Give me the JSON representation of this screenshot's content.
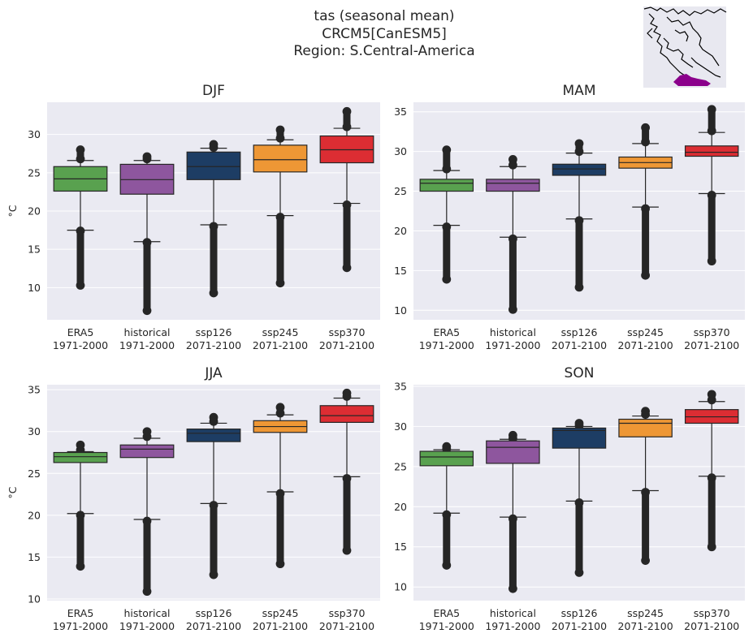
{
  "figure": {
    "title_line1": "tas (seasonal mean)",
    "title_line2": "CRCM5[CanESM5]",
    "title_line3": "Region: S.Central-America"
  },
  "colors": {
    "background": "#eaeaf2",
    "grid": "#ffffff",
    "ERA5": "#59a14f",
    "historical": "#8e569e",
    "ssp126": "#1d3d64",
    "ssp245": "#ee9735",
    "ssp370": "#dc2d33",
    "region_highlight": "#8b008b",
    "map_background": "#e8e8f0"
  },
  "map_inset": {
    "type": "region-map",
    "region": "S.Central-America"
  },
  "chart_data": [
    {
      "type": "box",
      "title": "DJF",
      "ylabel": "°C",
      "ylim": [
        5.8,
        34.2
      ],
      "yticks": [
        10,
        15,
        20,
        25,
        30
      ],
      "grid": true,
      "categories": [
        {
          "line1": "ERA5",
          "line2": "1971-2000"
        },
        {
          "line1": "historical",
          "line2": "1971-2000"
        },
        {
          "line1": "ssp126",
          "line2": "2071-2100"
        },
        {
          "line1": "ssp245",
          "line2": "2071-2100"
        },
        {
          "line1": "ssp370",
          "line2": "2071-2100"
        }
      ],
      "boxes": [
        {
          "name": "ERA5",
          "whislo": 17.5,
          "q1": 22.6,
          "med": 24.2,
          "q3": 25.8,
          "whishi": 26.6,
          "fliers_low": [
            10.3,
            17.4
          ],
          "fliers_high": [
            26.8,
            28.0
          ]
        },
        {
          "name": "historical",
          "whislo": 16.0,
          "q1": 22.2,
          "med": 24.1,
          "q3": 26.1,
          "whishi": 26.6,
          "fliers_low": [
            7.0,
            15.9
          ],
          "fliers_high": [
            26.8,
            27.1
          ]
        },
        {
          "name": "ssp126",
          "whislo": 18.2,
          "q1": 24.1,
          "med": 25.8,
          "q3": 27.7,
          "whishi": 28.2,
          "fliers_low": [
            9.3,
            18.0
          ],
          "fliers_high": [
            28.3,
            28.7
          ]
        },
        {
          "name": "ssp245",
          "whislo": 19.4,
          "q1": 25.1,
          "med": 26.7,
          "q3": 28.6,
          "whishi": 29.3,
          "fliers_low": [
            10.6,
            19.2
          ],
          "fliers_high": [
            29.5,
            30.6
          ]
        },
        {
          "name": "ssp370",
          "whislo": 21.0,
          "q1": 26.3,
          "med": 28.0,
          "q3": 29.8,
          "whishi": 30.8,
          "fliers_low": [
            12.6,
            20.8
          ],
          "fliers_high": [
            31.0,
            33.0
          ]
        }
      ]
    },
    {
      "type": "box",
      "title": "MAM",
      "ylabel": "",
      "ylim": [
        8.8,
        36.2
      ],
      "yticks": [
        10,
        15,
        20,
        25,
        30,
        35
      ],
      "grid": true,
      "categories": [
        {
          "line1": "ERA5",
          "line2": "1971-2000"
        },
        {
          "line1": "historical",
          "line2": "1971-2000"
        },
        {
          "line1": "ssp126",
          "line2": "2071-2100"
        },
        {
          "line1": "ssp245",
          "line2": "2071-2100"
        },
        {
          "line1": "ssp370",
          "line2": "2071-2100"
        }
      ],
      "boxes": [
        {
          "name": "ERA5",
          "whislo": 20.7,
          "q1": 25.0,
          "med": 26.0,
          "q3": 26.5,
          "whishi": 27.6,
          "fliers_low": [
            13.9,
            20.5
          ],
          "fliers_high": [
            27.8,
            30.2
          ]
        },
        {
          "name": "historical",
          "whislo": 19.2,
          "q1": 25.0,
          "med": 26.0,
          "q3": 26.5,
          "whishi": 28.1,
          "fliers_low": [
            10.1,
            19.0
          ],
          "fliers_high": [
            28.3,
            29.0
          ]
        },
        {
          "name": "ssp126",
          "whislo": 21.5,
          "q1": 27.0,
          "med": 27.8,
          "q3": 28.4,
          "whishi": 29.8,
          "fliers_low": [
            12.9,
            21.3
          ],
          "fliers_high": [
            30.0,
            31.0
          ]
        },
        {
          "name": "ssp245",
          "whislo": 23.0,
          "q1": 27.9,
          "med": 28.6,
          "q3": 29.3,
          "whishi": 31.0,
          "fliers_low": [
            14.4,
            22.8
          ],
          "fliers_high": [
            31.2,
            33.0
          ]
        },
        {
          "name": "ssp370",
          "whislo": 24.7,
          "q1": 29.4,
          "med": 29.9,
          "q3": 30.7,
          "whishi": 32.4,
          "fliers_low": [
            16.2,
            24.5
          ],
          "fliers_high": [
            32.6,
            35.3
          ]
        }
      ]
    },
    {
      "type": "box",
      "title": "JJA",
      "ylabel": "°C",
      "ylim": [
        9.8,
        35.6
      ],
      "yticks": [
        10,
        15,
        20,
        25,
        30,
        35
      ],
      "grid": true,
      "categories": [
        {
          "line1": "ERA5",
          "line2": "1971-2000"
        },
        {
          "line1": "historical",
          "line2": "1971-2000"
        },
        {
          "line1": "ssp126",
          "line2": "2071-2100"
        },
        {
          "line1": "ssp245",
          "line2": "2071-2100"
        },
        {
          "line1": "ssp370",
          "line2": "2071-2100"
        }
      ],
      "boxes": [
        {
          "name": "ERA5",
          "whislo": 20.2,
          "q1": 26.3,
          "med": 27.0,
          "q3": 27.5,
          "whishi": 27.6,
          "fliers_low": [
            13.9,
            20.0
          ],
          "fliers_high": [
            27.8,
            28.4
          ]
        },
        {
          "name": "historical",
          "whislo": 19.5,
          "q1": 26.9,
          "med": 27.9,
          "q3": 28.4,
          "whishi": 29.2,
          "fliers_low": [
            10.9,
            19.3
          ],
          "fliers_high": [
            29.4,
            30.0
          ]
        },
        {
          "name": "ssp126",
          "whislo": 21.4,
          "q1": 28.8,
          "med": 29.8,
          "q3": 30.3,
          "whishi": 31.0,
          "fliers_low": [
            12.9,
            21.2
          ],
          "fliers_high": [
            31.2,
            31.7
          ]
        },
        {
          "name": "ssp245",
          "whislo": 22.8,
          "q1": 29.9,
          "med": 30.6,
          "q3": 31.3,
          "whishi": 32.0,
          "fliers_low": [
            14.2,
            22.6
          ],
          "fliers_high": [
            32.2,
            32.9
          ]
        },
        {
          "name": "ssp370",
          "whislo": 24.6,
          "q1": 31.1,
          "med": 31.9,
          "q3": 33.1,
          "whishi": 34.0,
          "fliers_low": [
            15.8,
            24.4
          ],
          "fliers_high": [
            34.2,
            34.6
          ]
        }
      ]
    },
    {
      "type": "box",
      "title": "SON",
      "ylabel": "",
      "ylim": [
        8.3,
        35.2
      ],
      "yticks": [
        10,
        15,
        20,
        25,
        30,
        35
      ],
      "grid": true,
      "categories": [
        {
          "line1": "ERA5",
          "line2": "1971-2000"
        },
        {
          "line1": "historical",
          "line2": "1971-2000"
        },
        {
          "line1": "ssp126",
          "line2": "2071-2100"
        },
        {
          "line1": "ssp245",
          "line2": "2071-2100"
        },
        {
          "line1": "ssp370",
          "line2": "2071-2100"
        }
      ],
      "boxes": [
        {
          "name": "ERA5",
          "whislo": 19.2,
          "q1": 25.1,
          "med": 26.2,
          "q3": 26.9,
          "whishi": 27.1,
          "fliers_low": [
            12.7,
            19.0
          ],
          "fliers_high": [
            27.2,
            27.5
          ]
        },
        {
          "name": "historical",
          "whislo": 18.7,
          "q1": 25.4,
          "med": 27.4,
          "q3": 28.2,
          "whishi": 28.4,
          "fliers_low": [
            9.8,
            18.5
          ],
          "fliers_high": [
            28.5,
            28.9
          ]
        },
        {
          "name": "ssp126",
          "whislo": 20.7,
          "q1": 27.3,
          "med": 29.5,
          "q3": 29.8,
          "whishi": 30.0,
          "fliers_low": [
            11.8,
            20.5
          ],
          "fliers_high": [
            30.1,
            30.4
          ]
        },
        {
          "name": "ssp245",
          "whislo": 22.0,
          "q1": 28.7,
          "med": 30.4,
          "q3": 30.9,
          "whishi": 31.3,
          "fliers_low": [
            13.3,
            21.8
          ],
          "fliers_high": [
            31.5,
            31.9
          ]
        },
        {
          "name": "ssp370",
          "whislo": 23.8,
          "q1": 30.4,
          "med": 31.2,
          "q3": 32.1,
          "whishi": 33.1,
          "fliers_low": [
            15.0,
            23.6
          ],
          "fliers_high": [
            33.3,
            34.0
          ]
        }
      ]
    }
  ]
}
